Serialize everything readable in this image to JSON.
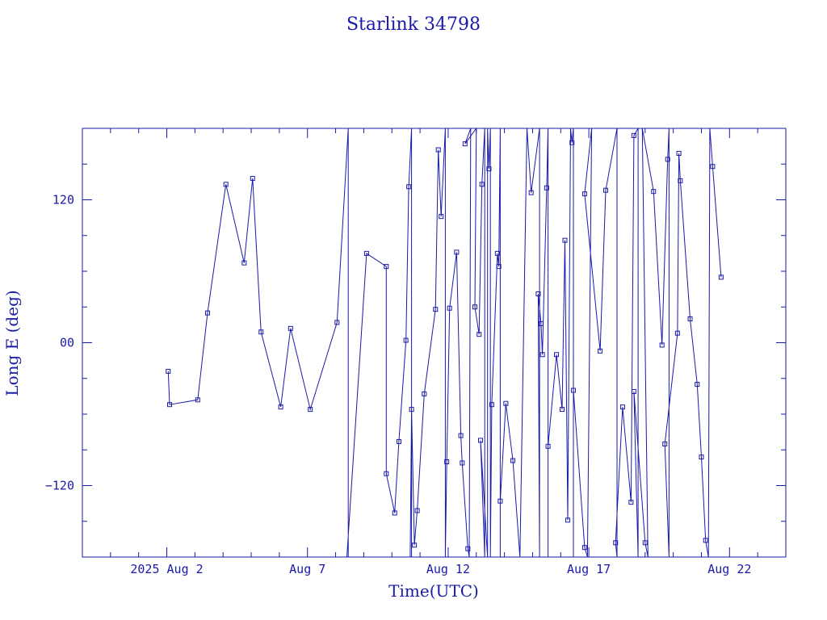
{
  "chart_data": {
    "type": "line",
    "title": "Starlink 34798",
    "xlabel": "Time(UTC)",
    "ylabel": "Long E (deg)",
    "xlim": [
      -3,
      22
    ],
    "ylim": [
      -180,
      180
    ],
    "x_ticks": [
      {
        "value": 0,
        "label": "2025 Aug  2"
      },
      {
        "value": 5,
        "label": "Aug  7"
      },
      {
        "value": 10,
        "label": "Aug 12"
      },
      {
        "value": 15,
        "label": "Aug 17"
      },
      {
        "value": 20,
        "label": "Aug 22"
      }
    ],
    "y_ticks": [
      {
        "value": 120,
        "label": "120"
      },
      {
        "value": 0,
        "label": "00"
      },
      {
        "value": -120,
        "label": "−120"
      }
    ],
    "x_unit_note": "x values in days after 2025 Aug 2 00:00 UTC",
    "grid": false,
    "color": "#1a1aa8",
    "series": [
      {
        "name": "",
        "points": [
          [
            0.05,
            -24
          ],
          [
            0.1,
            -52
          ],
          [
            1.1,
            -48
          ],
          [
            1.45,
            25
          ],
          [
            2.1,
            133
          ],
          [
            2.75,
            67
          ],
          [
            3.05,
            138
          ],
          [
            3.35,
            9
          ],
          [
            4.05,
            -54
          ],
          [
            4.4,
            12
          ],
          [
            5.1,
            -56
          ],
          [
            6.05,
            17
          ],
          [
            6.45,
            180
          ],
          [
            6.45,
            -180
          ],
          [
            6.4,
            -180
          ],
          [
            7.1,
            75
          ],
          [
            7.8,
            64
          ],
          [
            7.8,
            -110
          ],
          [
            8.1,
            -143
          ],
          [
            8.25,
            -83
          ],
          [
            8.5,
            2
          ],
          [
            8.6,
            131
          ],
          [
            8.7,
            180
          ],
          [
            8.7,
            -180
          ],
          [
            8.65,
            -180
          ],
          [
            8.7,
            -56
          ],
          [
            8.8,
            -170
          ],
          [
            8.9,
            -141
          ],
          [
            9.15,
            -43
          ],
          [
            9.55,
            28
          ],
          [
            9.65,
            162
          ],
          [
            9.75,
            106
          ],
          [
            9.9,
            180
          ],
          [
            9.9,
            -180
          ],
          [
            9.95,
            -100
          ],
          [
            10.05,
            29
          ],
          [
            10.3,
            76
          ],
          [
            10.45,
            -78
          ],
          [
            10.5,
            -101
          ],
          [
            10.7,
            -173
          ],
          [
            10.75,
            -180
          ],
          [
            10.8,
            180
          ],
          [
            10.6,
            167
          ],
          [
            11.0,
            180
          ],
          [
            11.0,
            180
          ],
          [
            10.95,
            30
          ],
          [
            11.1,
            7
          ],
          [
            11.2,
            133
          ],
          [
            11.3,
            180
          ],
          [
            11.3,
            -180
          ],
          [
            11.15,
            -82
          ],
          [
            11.4,
            -180
          ],
          [
            11.4,
            180
          ],
          [
            11.45,
            146
          ],
          [
            11.5,
            180
          ],
          [
            11.5,
            -180
          ],
          [
            11.55,
            -52
          ],
          [
            11.75,
            75
          ],
          [
            11.8,
            64
          ],
          [
            11.85,
            180
          ],
          [
            11.85,
            -180
          ],
          [
            11.85,
            -133
          ],
          [
            12.05,
            -51
          ],
          [
            12.3,
            -99
          ],
          [
            12.55,
            -180
          ],
          [
            12.8,
            180
          ],
          [
            12.95,
            126
          ],
          [
            13.25,
            180
          ],
          [
            13.25,
            -180
          ],
          [
            13.2,
            41
          ],
          [
            13.3,
            16
          ],
          [
            13.35,
            -10
          ],
          [
            13.5,
            130
          ],
          [
            13.55,
            180
          ],
          [
            13.55,
            -180
          ],
          [
            13.55,
            -87
          ],
          [
            13.85,
            -10
          ],
          [
            14.05,
            -56
          ],
          [
            14.15,
            86
          ],
          [
            14.25,
            -149
          ],
          [
            14.35,
            180
          ],
          [
            14.4,
            168
          ],
          [
            14.45,
            180
          ],
          [
            14.45,
            -180
          ],
          [
            14.45,
            -40
          ],
          [
            14.85,
            -172
          ],
          [
            14.95,
            -180
          ],
          [
            15.1,
            180
          ],
          [
            14.85,
            125
          ],
          [
            15.4,
            -7
          ],
          [
            15.6,
            128
          ],
          [
            16.0,
            180
          ],
          [
            16.0,
            -180
          ],
          [
            15.95,
            -168
          ],
          [
            16.2,
            -54
          ],
          [
            16.5,
            -134
          ],
          [
            16.6,
            174
          ],
          [
            16.75,
            180
          ],
          [
            16.75,
            -180
          ],
          [
            16.6,
            -41
          ],
          [
            17.0,
            -168
          ],
          [
            17.1,
            -180
          ],
          [
            16.9,
            180
          ],
          [
            17.3,
            127
          ],
          [
            17.6,
            -2
          ],
          [
            17.8,
            154
          ],
          [
            17.85,
            180
          ],
          [
            17.85,
            -180
          ],
          [
            17.7,
            -85
          ],
          [
            18.15,
            8
          ],
          [
            18.2,
            159
          ],
          [
            18.25,
            136
          ],
          [
            18.6,
            20
          ],
          [
            18.85,
            -35
          ],
          [
            19.0,
            -96
          ],
          [
            19.15,
            -166
          ],
          [
            19.25,
            -180
          ],
          [
            19.3,
            180
          ],
          [
            19.4,
            148
          ],
          [
            19.7,
            55
          ]
        ]
      }
    ],
    "markers": "small open squares"
  }
}
